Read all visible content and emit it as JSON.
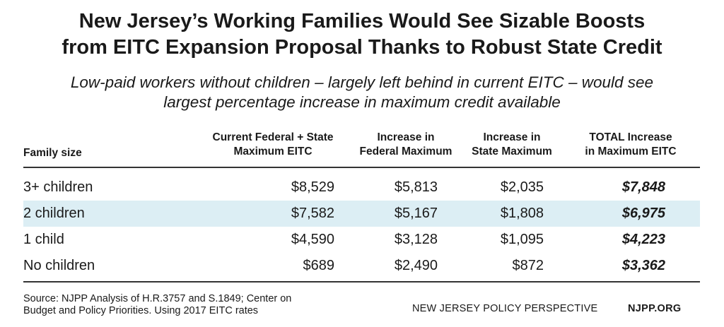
{
  "chart_data": {
    "type": "table",
    "title_lines": [
      "New Jersey’s Working Families Would See Sizable Boosts",
      "from EITC Expansion Proposal Thanks to Robust State Credit"
    ],
    "subtitle_lines": [
      "Low-paid workers without children – largely left behind in current EITC – would see",
      "largest percentage increase in maximum credit available"
    ],
    "columns": [
      {
        "lines": [
          "Family size"
        ]
      },
      {
        "lines": [
          "Current Federal + State",
          "Maximum EITC"
        ]
      },
      {
        "lines": [
          "Increase in",
          "Federal Maximum"
        ]
      },
      {
        "lines": [
          "Increase in",
          "State Maximum"
        ]
      },
      {
        "lines": [
          "TOTAL Increase",
          "in Maximum EITC"
        ]
      }
    ],
    "rows": [
      {
        "label": "3+ children",
        "values": [
          "$8,529",
          "$5,813",
          "$2,035",
          "$7,848"
        ],
        "highlight": false
      },
      {
        "label": "2 children",
        "values": [
          "$7,582",
          "$5,167",
          "$1,808",
          "$6,975"
        ],
        "highlight": true
      },
      {
        "label": "1 child",
        "values": [
          "$4,590",
          "$3,128",
          "$1,095",
          "$4,223"
        ],
        "highlight": false
      },
      {
        "label": "No children",
        "values": [
          "$689",
          "$2,490",
          "$872",
          "$3,362"
        ],
        "highlight": false
      }
    ],
    "highlight_color": "#dceef4",
    "source_lines": [
      "Source: NJPP Analysis of H.R.3757 and S.1849; Center on",
      "Budget and Policy Priorities. Using 2017 EITC rates"
    ],
    "organization": "NEW JERSEY POLICY PERSPECTIVE",
    "website": "NJPP.ORG"
  }
}
